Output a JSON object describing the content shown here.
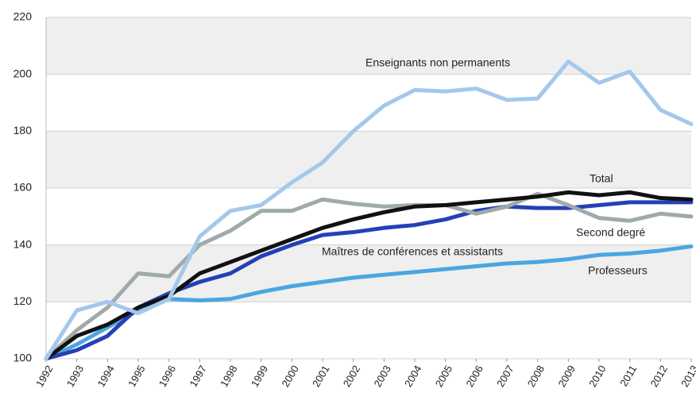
{
  "chart_data": {
    "type": "line",
    "x": [
      1992,
      1993,
      1994,
      1995,
      1996,
      1997,
      1998,
      1999,
      2000,
      2001,
      2002,
      2003,
      2004,
      2005,
      2006,
      2007,
      2008,
      2009,
      2010,
      2011,
      2012,
      2013
    ],
    "xlim": [
      1992,
      2013
    ],
    "xticks": [
      1992,
      1993,
      1994,
      1995,
      1996,
      1997,
      1998,
      1999,
      2000,
      2001,
      2002,
      2003,
      2004,
      2005,
      2006,
      2007,
      2008,
      2009,
      2010,
      2011,
      2012,
      2013
    ],
    "ylim": [
      100,
      220
    ],
    "yticks": [
      100,
      120,
      140,
      160,
      180,
      200,
      220
    ],
    "grid": true,
    "series": [
      {
        "name": "Professeurs",
        "color": "#4aa6e0",
        "values": [
          100,
          105,
          111,
          117,
          121,
          120.5,
          121,
          123.5,
          125.5,
          127,
          128.5,
          129.5,
          130.5,
          131.5,
          132.5,
          133.5,
          134,
          135,
          136.5,
          137,
          138,
          139.5
        ]
      },
      {
        "name": "Maîtres de conférences et assistants",
        "color": "#2440b8",
        "values": [
          100,
          103,
          108,
          118,
          123,
          127,
          130,
          136,
          140,
          143.5,
          144.5,
          146,
          147,
          149,
          152,
          153.5,
          153,
          153,
          154,
          155,
          155,
          155
        ]
      },
      {
        "name": "Second degré",
        "color": "#a0aaa8",
        "values": [
          100,
          110,
          118,
          130,
          129,
          140,
          145,
          152,
          152,
          156,
          154.5,
          153.5,
          154,
          154,
          151,
          153.5,
          158,
          154,
          149.5,
          148.5,
          151,
          150
        ]
      },
      {
        "name": "Total",
        "color": "#111111",
        "values": [
          100,
          108,
          112,
          118,
          122,
          130,
          134,
          138,
          142,
          146,
          149,
          151.5,
          153.5,
          154,
          155,
          156,
          157,
          158.5,
          157.5,
          158.5,
          156.5,
          156
        ]
      },
      {
        "name": "Enseignants non permanents",
        "color": "#a3c8ec",
        "values": [
          100,
          117,
          120,
          116,
          121,
          143,
          152,
          154,
          162,
          169,
          180,
          189,
          194.5,
          194,
          195,
          191,
          191.5,
          204.5,
          197,
          201,
          187.5,
          182.5
        ]
      }
    ]
  }
}
